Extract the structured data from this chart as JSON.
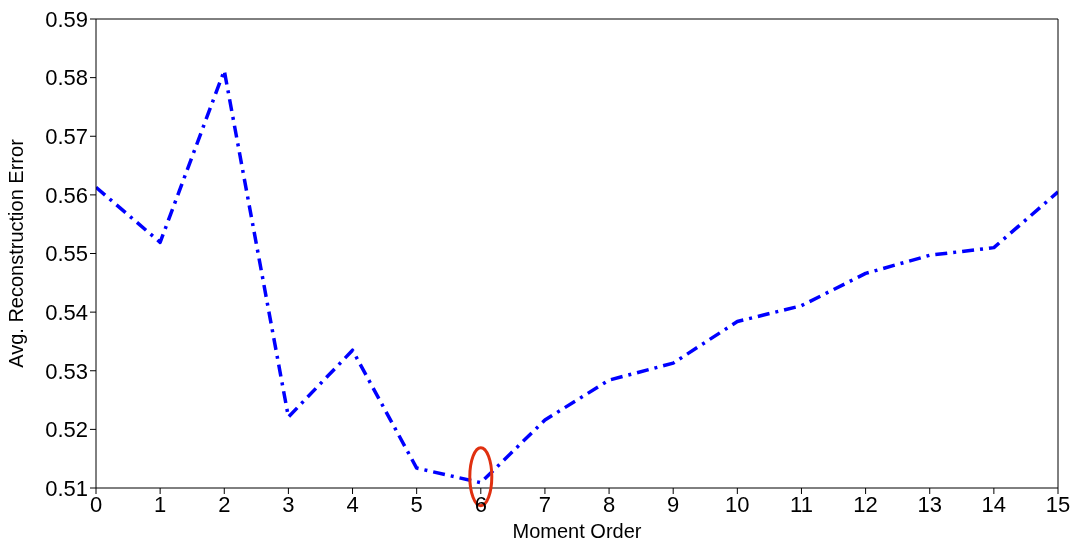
{
  "chart_data": {
    "type": "line",
    "xlabel": "Moment Order",
    "ylabel": "Avg. Reconstruction Error",
    "x": [
      0,
      1,
      2,
      3,
      4,
      5,
      6,
      7,
      8,
      9,
      10,
      11,
      12,
      13,
      14,
      15
    ],
    "series": [
      {
        "color": "#0000ff",
        "values": [
          0.5613,
          0.5519,
          0.5812,
          0.5221,
          0.5335,
          0.5134,
          0.5109,
          0.5216,
          0.5284,
          0.5313,
          0.5384,
          0.5411,
          0.5466,
          0.5497,
          0.551,
          0.5605
        ]
      }
    ],
    "xlim": [
      0,
      15
    ],
    "xticks": [
      0,
      1,
      2,
      3,
      4,
      5,
      6,
      7,
      8,
      9,
      10,
      11,
      12,
      13,
      14,
      15
    ],
    "ylim": [
      0.51,
      0.59
    ],
    "yticks": [
      0.51,
      0.52,
      0.53,
      0.54,
      0.55,
      0.56,
      0.57,
      0.58,
      0.59
    ],
    "grid": false,
    "legend": false,
    "marker": "none",
    "line_style": "dashed"
  }
}
